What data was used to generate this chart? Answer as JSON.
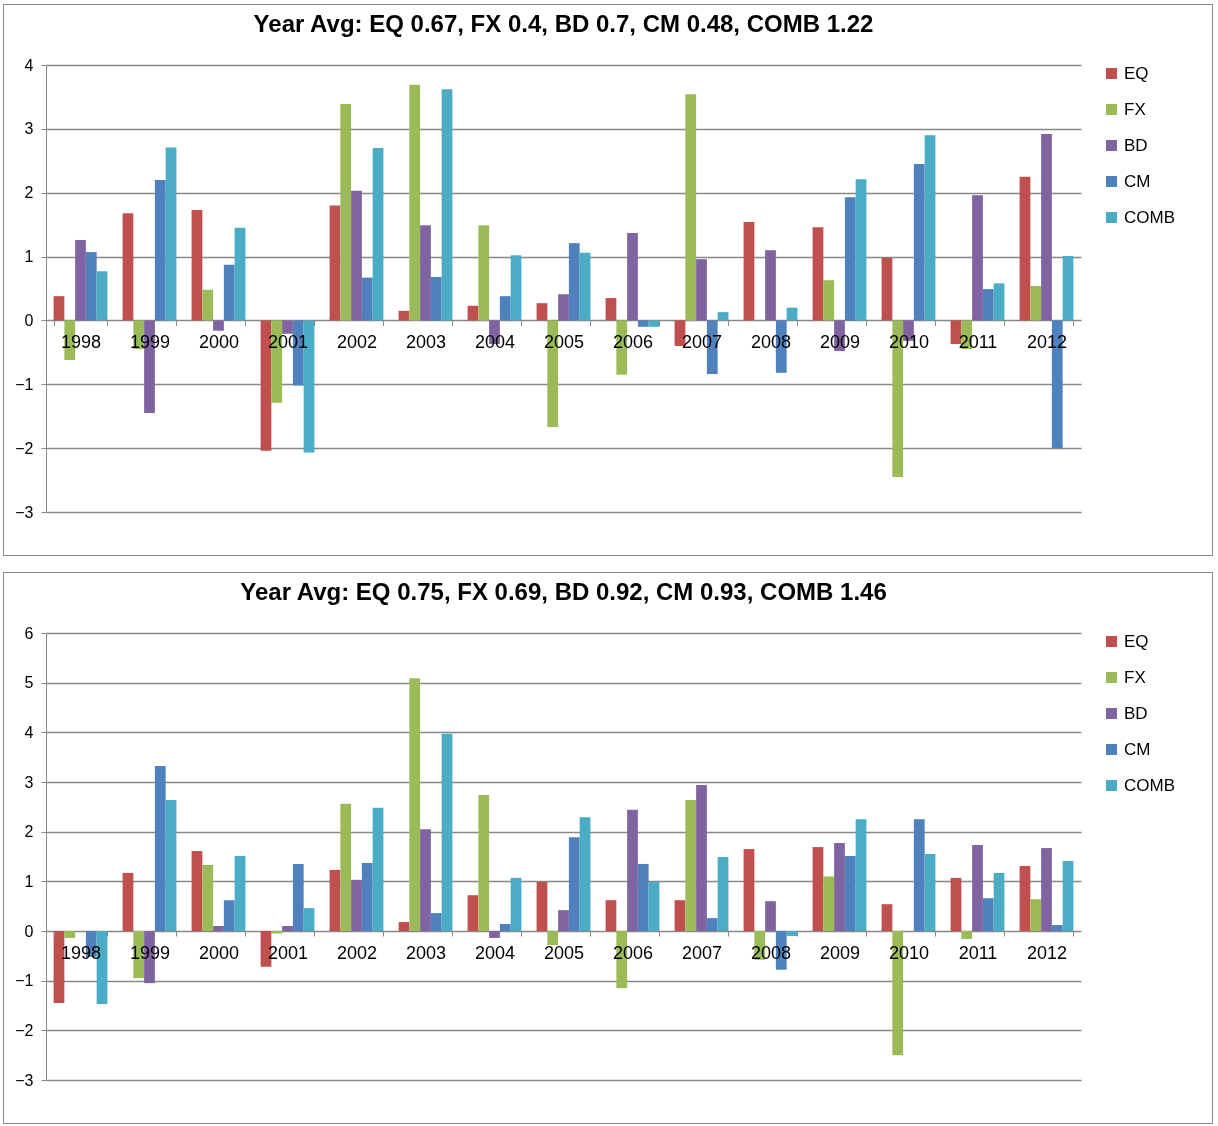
{
  "chart_data": [
    {
      "type": "bar",
      "title": "Year Avg: EQ 0.67, FX 0.4, BD 0.7, CM 0.48, COMB 1.22",
      "categories": [
        "1998",
        "1999",
        "2000",
        "2001",
        "2002",
        "2003",
        "2004",
        "2005",
        "2006",
        "2007",
        "2008",
        "2009",
        "2010",
        "2011",
        "2012"
      ],
      "series": [
        {
          "name": "EQ",
          "color": "#c0504d",
          "values": [
            0.38,
            1.68,
            1.73,
            -2.04,
            1.8,
            0.15,
            0.23,
            0.27,
            0.35,
            -0.4,
            1.54,
            1.46,
            0.98,
            -0.37,
            2.25
          ]
        },
        {
          "name": "FX",
          "color": "#9bbb59",
          "values": [
            -0.62,
            -0.45,
            0.48,
            -1.29,
            3.39,
            3.69,
            1.49,
            -1.67,
            -0.85,
            3.54,
            0,
            0.63,
            -2.45,
            -0.45,
            0.54
          ]
        },
        {
          "name": "BD",
          "color": "#8064a2",
          "values": [
            1.26,
            -1.45,
            -0.16,
            -0.21,
            2.03,
            1.49,
            -0.37,
            0.41,
            1.37,
            0.96,
            1.1,
            -0.48,
            -0.32,
            1.96,
            2.92
          ]
        },
        {
          "name": "CM",
          "color": "#4f81bd",
          "values": [
            1.07,
            2.2,
            0.87,
            -1.02,
            0.67,
            0.68,
            0.38,
            1.21,
            -0.1,
            -0.84,
            -0.82,
            1.93,
            2.45,
            0.49,
            -2.0
          ]
        },
        {
          "name": "COMB",
          "color": "#4bacc6",
          "values": [
            0.77,
            2.71,
            1.45,
            -2.07,
            2.7,
            3.62,
            1.02,
            1.06,
            -0.1,
            0.13,
            0.2,
            2.21,
            2.9,
            0.58,
            1.01
          ]
        }
      ],
      "ylim": [
        -3,
        4
      ],
      "yticks": [
        -3,
        -2,
        -1,
        0,
        1,
        2,
        3,
        4
      ],
      "grid": "y",
      "legend": "right"
    },
    {
      "type": "bar",
      "title": "Year Avg: EQ 0.75, FX 0.69, BD 0.92, CM 0.93, COMB 1.46",
      "categories": [
        "1998",
        "1999",
        "2000",
        "2001",
        "2002",
        "2003",
        "2004",
        "2005",
        "2006",
        "2007",
        "2008",
        "2009",
        "2010",
        "2011",
        "2012"
      ],
      "series": [
        {
          "name": "EQ",
          "color": "#c0504d",
          "values": [
            -1.45,
            1.17,
            1.61,
            -0.72,
            1.23,
            0.18,
            0.72,
            0.99,
            0.62,
            0.62,
            1.65,
            1.69,
            0.54,
            1.07,
            1.31
          ]
        },
        {
          "name": "FX",
          "color": "#9bbb59",
          "values": [
            -0.14,
            -0.95,
            1.33,
            -0.05,
            2.56,
            5.09,
            2.74,
            -0.28,
            -1.15,
            2.64,
            -0.58,
            1.1,
            -2.5,
            -0.16,
            0.64
          ]
        },
        {
          "name": "BD",
          "color": "#8064a2",
          "values": [
            0,
            -1.05,
            0.1,
            0.1,
            1.03,
            2.05,
            -0.14,
            0.42,
            2.44,
            2.94,
            0.6,
            1.77,
            0,
            1.73,
            1.67
          ]
        },
        {
          "name": "CM",
          "color": "#4f81bd",
          "values": [
            -0.52,
            3.32,
            0.62,
            1.35,
            1.37,
            0.36,
            0.14,
            1.89,
            1.35,
            0.26,
            -0.78,
            1.51,
            2.25,
            0.66,
            0.12
          ]
        },
        {
          "name": "COMB",
          "color": "#4bacc6",
          "values": [
            -1.47,
            2.64,
            1.51,
            0.46,
            2.48,
            3.97,
            1.07,
            2.29,
            0.99,
            1.49,
            -0.1,
            2.25,
            1.55,
            1.17,
            1.41
          ]
        }
      ],
      "ylim": [
        -3,
        6
      ],
      "yticks": [
        -3,
        -2,
        -1,
        0,
        1,
        2,
        3,
        4,
        5,
        6
      ],
      "grid": "y",
      "legend": "right"
    }
  ]
}
